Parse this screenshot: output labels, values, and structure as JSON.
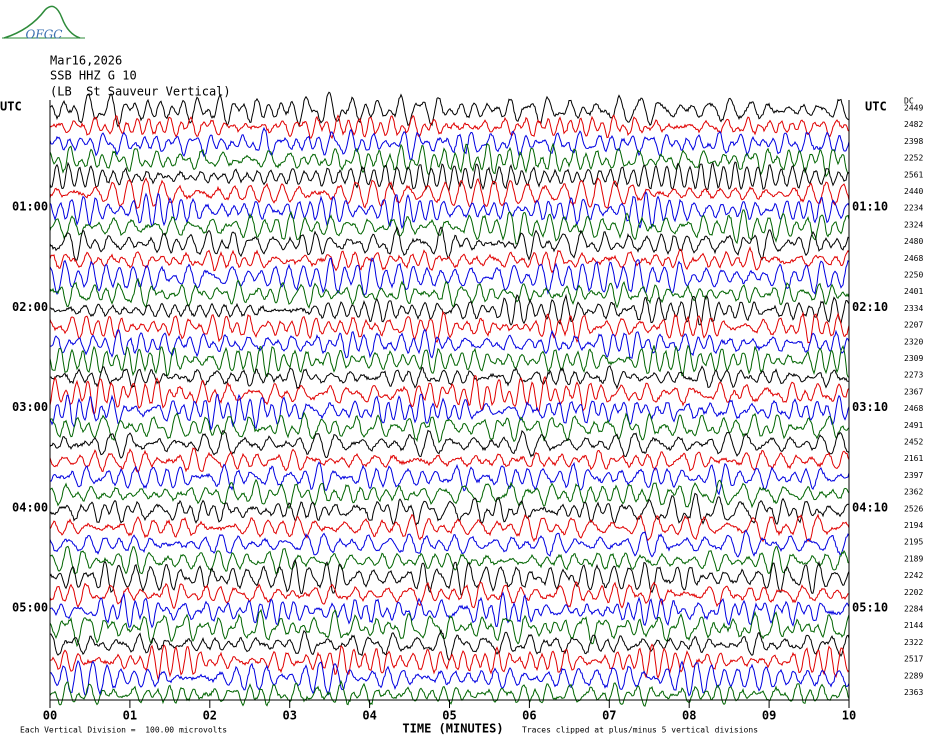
{
  "chart_data": {
    "type": "helicorder",
    "logo": "OFGC",
    "date": "Mar16,2026",
    "station": "SSB HHZ G 10",
    "location": "(LB  St Sauveur Vertical)",
    "xlabel": "TIME (MINUTES)",
    "xticks": [
      {
        "value": 0,
        "label": "00"
      },
      {
        "value": 1,
        "label": "01"
      },
      {
        "value": 2,
        "label": "02"
      },
      {
        "value": 3,
        "label": "03"
      },
      {
        "value": 4,
        "label": "04"
      },
      {
        "value": 5,
        "label": "05"
      },
      {
        "value": 6,
        "label": "06"
      },
      {
        "value": 7,
        "label": "07"
      },
      {
        "value": 8,
        "label": "08"
      },
      {
        "value": 9,
        "label": "09"
      },
      {
        "value": 10,
        "label": "10"
      }
    ],
    "xlim": [
      0,
      10
    ],
    "left_labels": [
      "UTC",
      "01:00",
      "02:00",
      "03:00",
      "04:00",
      "05:00"
    ],
    "right_labels": [
      "UTC",
      "01:10",
      "02:10",
      "03:10",
      "04:10",
      "05:10"
    ],
    "offset_header": "DC",
    "offsets": [
      2449,
      2482,
      2398,
      2252,
      2561,
      2440,
      2234,
      2324,
      2480,
      2468,
      2250,
      2401,
      2334,
      2207,
      2320,
      2309,
      2273,
      2367,
      2468,
      2491,
      2452,
      2161,
      2397,
      2362,
      2526,
      2194,
      2195,
      2189,
      2242,
      2202,
      2284,
      2144,
      2322,
      2517,
      2289,
      2363
    ],
    "colors": [
      "#000000",
      "#e00000",
      "#0000e0",
      "#006400"
    ],
    "scale_note": "Each Vertical Division =  100.00 microvolts",
    "clip_note": "Traces clipped at plus/minus 5 vertical divisions"
  }
}
